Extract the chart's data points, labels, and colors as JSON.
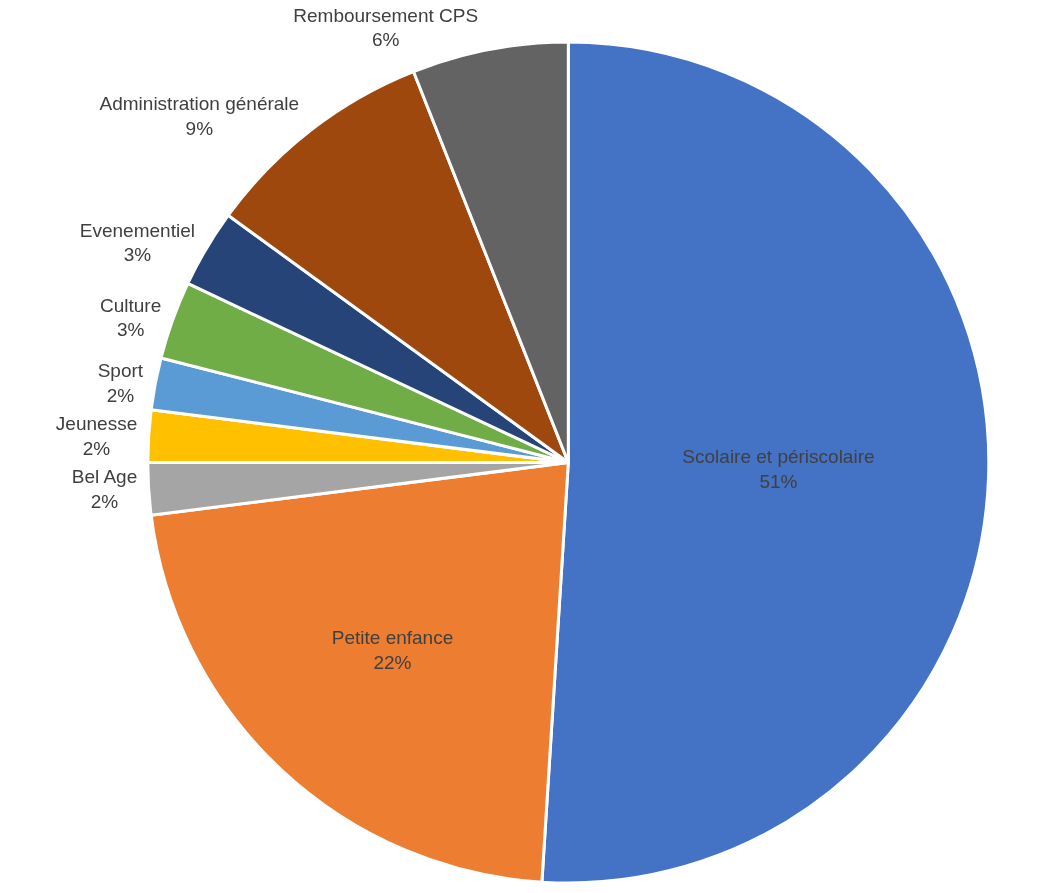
{
  "chart_data": {
    "type": "pie",
    "categories": [
      "Scolaire et périscolaire",
      "Petite enfance",
      "Bel Age",
      "Jeunesse",
      "Sport",
      "Culture",
      "Evenementiel",
      "Administration générale",
      "Remboursement CPS"
    ],
    "values": [
      51,
      22,
      2,
      2,
      2,
      3,
      3,
      9,
      6
    ],
    "value_labels": [
      "51%",
      "22%",
      "2%",
      "2%",
      "2%",
      "3%",
      "3%",
      "9%",
      "6%"
    ],
    "colors": [
      "#4472c4",
      "#ed7d31",
      "#a5a5a5",
      "#ffc000",
      "#5b9bd5",
      "#70ad47",
      "#264478",
      "#9e480e",
      "#636363"
    ],
    "legend": false
  }
}
